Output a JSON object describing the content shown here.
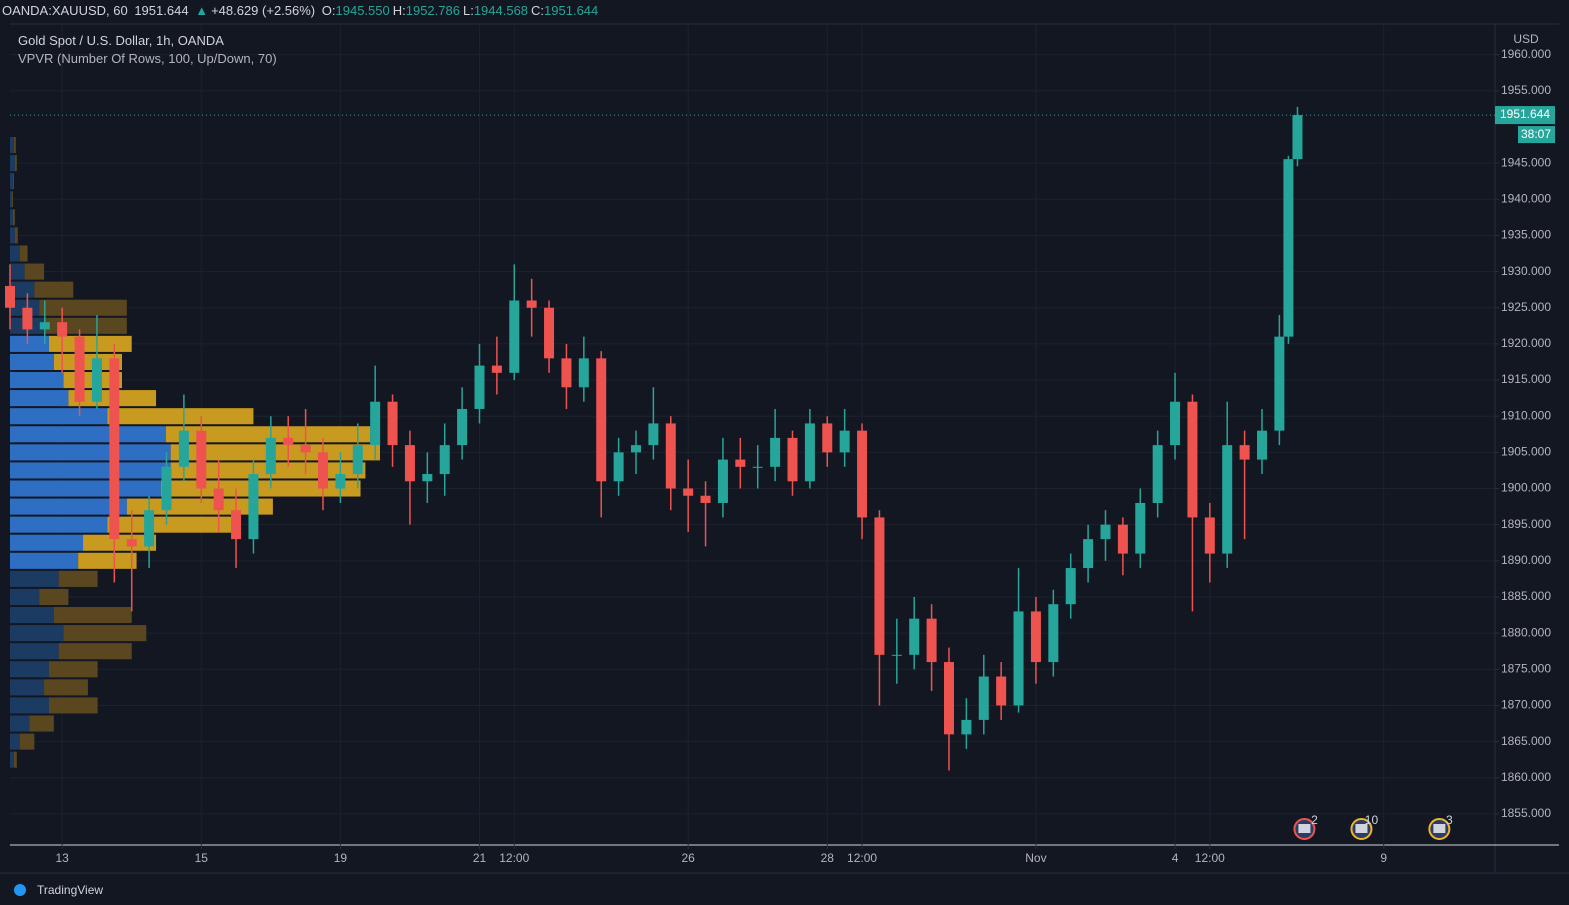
{
  "chart_data": {
    "type": "candlestick",
    "header": {
      "symbol": "OANDA:XAUUSD, 60",
      "price": "1951.644",
      "change": "+48.629 (+2.56%)",
      "fields": [
        {
          "key": "O:",
          "value": "1945.550"
        },
        {
          "key": "H:",
          "value": "1952.786"
        },
        {
          "key": "L:",
          "value": "1944.568"
        },
        {
          "key": "C:",
          "value": "1951.644"
        }
      ]
    },
    "title": "Gold Spot / U.S. Dollar, 1h, OANDA",
    "currency": "USD",
    "countdown": "38:07",
    "brand": "TradingView",
    "up_color": "#26a69a",
    "down_color": "#ef5350",
    "grid": true,
    "xlim": [
      -0.75,
      20.6
    ],
    "xticks": [
      {
        "value": 0,
        "label": "13"
      },
      {
        "value": 2,
        "label": "15"
      },
      {
        "value": 4,
        "label": "19"
      },
      {
        "value": 6,
        "label": "21"
      },
      {
        "value": 6.5,
        "label": "12:00"
      },
      {
        "value": 9,
        "label": "26"
      },
      {
        "value": 11,
        "label": "28"
      },
      {
        "value": 11.5,
        "label": "12:00"
      },
      {
        "value": 14,
        "label": "Nov"
      },
      {
        "value": 16,
        "label": "4"
      },
      {
        "value": 16.5,
        "label": "12:00"
      },
      {
        "value": 19,
        "label": "9"
      }
    ],
    "ylim": [
      1850.7,
      1964.1
    ],
    "yticks": [
      {
        "value": 1855,
        "label": "1855.000"
      },
      {
        "value": 1860,
        "label": "1860.000"
      },
      {
        "value": 1865,
        "label": "1865.000"
      },
      {
        "value": 1870,
        "label": "1870.000"
      },
      {
        "value": 1875,
        "label": "1875.000"
      },
      {
        "value": 1880,
        "label": "1880.000"
      },
      {
        "value": 1885,
        "label": "1885.000"
      },
      {
        "value": 1890,
        "label": "1890.000"
      },
      {
        "value": 1895,
        "label": "1895.000"
      },
      {
        "value": 1900,
        "label": "1900.000"
      },
      {
        "value": 1905,
        "label": "1905.000"
      },
      {
        "value": 1910,
        "label": "1910.000"
      },
      {
        "value": 1915,
        "label": "1915.000"
      },
      {
        "value": 1920,
        "label": "1920.000"
      },
      {
        "value": 1925,
        "label": "1925.000"
      },
      {
        "value": 1930,
        "label": "1930.000"
      },
      {
        "value": 1935,
        "label": "1935.000"
      },
      {
        "value": 1940,
        "label": "1940.000"
      },
      {
        "value": 1945,
        "label": "1945.000"
      },
      {
        "value": 1955,
        "label": "1955.000"
      },
      {
        "value": 1960,
        "label": "1960.000"
      }
    ],
    "x": [
      -0.75,
      -0.5,
      -0.25,
      0,
      0.25,
      0.5,
      0.75,
      1,
      1.25,
      1.5,
      1.75,
      2,
      2.25,
      2.5,
      2.75,
      3,
      3.25,
      3.5,
      3.75,
      4,
      4.25,
      4.5,
      4.75,
      5,
      5.25,
      5.5,
      5.75,
      6,
      6.25,
      6.5,
      6.75,
      7,
      7.25,
      7.5,
      7.75,
      8,
      8.25,
      8.5,
      8.75,
      9,
      9.25,
      9.5,
      9.75,
      10,
      10.25,
      10.5,
      10.75,
      11,
      11.25,
      11.5,
      11.75,
      12,
      12.25,
      12.5,
      12.75,
      13,
      13.25,
      13.5,
      13.75,
      14,
      14.25,
      14.5,
      14.75,
      15,
      15.25,
      15.5,
      15.75,
      16,
      16.25,
      16.5,
      16.75,
      17,
      17.25,
      17.5,
      17.63,
      17.76
    ],
    "ohlc": [
      [
        1928,
        1931,
        1922,
        1925
      ],
      [
        1925,
        1927,
        1920,
        1922
      ],
      [
        1922,
        1926,
        1920,
        1923
      ],
      [
        1923,
        1925,
        1916,
        1921
      ],
      [
        1921,
        1922,
        1910,
        1912
      ],
      [
        1912,
        1924,
        1911,
        1918
      ],
      [
        1918,
        1920,
        1887,
        1893
      ],
      [
        1893,
        1897,
        1883,
        1892
      ],
      [
        1892,
        1899,
        1889,
        1897
      ],
      [
        1897,
        1905,
        1895,
        1903
      ],
      [
        1903,
        1913,
        1901,
        1908
      ],
      [
        1908,
        1910,
        1898,
        1900
      ],
      [
        1900,
        1904,
        1894,
        1897
      ],
      [
        1897,
        1900,
        1889,
        1893
      ],
      [
        1893,
        1904,
        1891,
        1902
      ],
      [
        1902,
        1910,
        1900,
        1907
      ],
      [
        1907,
        1910,
        1903,
        1906
      ],
      [
        1906,
        1911,
        1902,
        1905
      ],
      [
        1905,
        1907,
        1897,
        1900
      ],
      [
        1900,
        1905,
        1898,
        1902
      ],
      [
        1902,
        1909,
        1900,
        1906
      ],
      [
        1906,
        1917,
        1904,
        1912
      ],
      [
        1912,
        1913,
        1903,
        1906
      ],
      [
        1906,
        1908,
        1895,
        1901
      ],
      [
        1901,
        1905,
        1898,
        1902
      ],
      [
        1902,
        1909,
        1899,
        1906
      ],
      [
        1906,
        1914,
        1904,
        1911
      ],
      [
        1911,
        1920,
        1909,
        1917
      ],
      [
        1917,
        1921,
        1913,
        1916
      ],
      [
        1916,
        1931,
        1915,
        1926
      ],
      [
        1926,
        1929,
        1921,
        1925
      ],
      [
        1925,
        1926,
        1916,
        1918
      ],
      [
        1918,
        1920,
        1911,
        1914
      ],
      [
        1914,
        1921,
        1912,
        1918
      ],
      [
        1918,
        1919,
        1896,
        1901
      ],
      [
        1901,
        1907,
        1899,
        1905
      ],
      [
        1905,
        1908,
        1902,
        1906
      ],
      [
        1906,
        1914,
        1904,
        1909
      ],
      [
        1909,
        1910,
        1897,
        1900
      ],
      [
        1900,
        1904,
        1894,
        1899
      ],
      [
        1899,
        1901,
        1892,
        1898
      ],
      [
        1898,
        1907,
        1896,
        1904
      ],
      [
        1904,
        1907,
        1900,
        1903
      ],
      [
        1903,
        1906,
        1900,
        1903
      ],
      [
        1903,
        1911,
        1901,
        1907
      ],
      [
        1907,
        1908,
        1899,
        1901
      ],
      [
        1901,
        1911,
        1900,
        1909
      ],
      [
        1909,
        1910,
        1903,
        1905
      ],
      [
        1905,
        1911,
        1903,
        1908
      ],
      [
        1908,
        1909,
        1893,
        1896
      ],
      [
        1896,
        1897,
        1870,
        1877
      ],
      [
        1877,
        1882,
        1873,
        1877
      ],
      [
        1877,
        1885,
        1875,
        1882
      ],
      [
        1882,
        1884,
        1872,
        1876
      ],
      [
        1876,
        1878,
        1861,
        1866
      ],
      [
        1866,
        1871,
        1864,
        1868
      ],
      [
        1868,
        1877,
        1866,
        1874
      ],
      [
        1874,
        1876,
        1868,
        1870
      ],
      [
        1870,
        1889,
        1869,
        1883
      ],
      [
        1883,
        1885,
        1873,
        1876
      ],
      [
        1876,
        1886,
        1874,
        1884
      ],
      [
        1884,
        1891,
        1882,
        1889
      ],
      [
        1889,
        1895,
        1887,
        1893
      ],
      [
        1893,
        1897,
        1890,
        1895
      ],
      [
        1895,
        1896,
        1888,
        1891
      ],
      [
        1891,
        1900,
        1889,
        1898
      ],
      [
        1898,
        1908,
        1896,
        1906
      ],
      [
        1906,
        1916,
        1904,
        1912
      ],
      [
        1912,
        1913,
        1883,
        1896
      ],
      [
        1896,
        1898,
        1887,
        1891
      ],
      [
        1891,
        1912,
        1889,
        1906
      ],
      [
        1906,
        1908,
        1893,
        1904
      ],
      [
        1904,
        1911,
        1902,
        1908
      ],
      [
        1908,
        1924,
        1906,
        1921
      ],
      [
        1921,
        1946,
        1920,
        1945.55
      ],
      [
        1945.55,
        1952.786,
        1944.568,
        1951.644
      ]
    ],
    "vpvr": {
      "name": "VPVR (Number Of Rows, 100, Up/Down, 70)",
      "levels": [
        1947.5,
        1945,
        1942.5,
        1940,
        1937.5,
        1935,
        1932.5,
        1930,
        1927.5,
        1925,
        1922.5,
        1920,
        1917.5,
        1915,
        1912.5,
        1910,
        1907.5,
        1905,
        1902.5,
        1900,
        1897.5,
        1895,
        1892.5,
        1890,
        1887.5,
        1885,
        1882.5,
        1880,
        1877.5,
        1875,
        1872.5,
        1870,
        1867.5,
        1865,
        1862.5
      ],
      "up": [
        4,
        5,
        3,
        2,
        3,
        5,
        10,
        15,
        25,
        30,
        35,
        40,
        45,
        55,
        60,
        100,
        160,
        165,
        165,
        155,
        120,
        100,
        75,
        70,
        50,
        30,
        45,
        55,
        50,
        40,
        35,
        40,
        20,
        10,
        4
      ],
      "down": [
        2,
        2,
        1,
        1,
        2,
        3,
        8,
        20,
        40,
        90,
        85,
        85,
        70,
        60,
        90,
        150,
        210,
        215,
        200,
        205,
        150,
        130,
        75,
        60,
        40,
        30,
        80,
        85,
        75,
        50,
        45,
        50,
        25,
        15,
        3
      ],
      "value_area": [
        1889,
        1921
      ],
      "colors": {
        "up": "#2e6fc4",
        "down": "#c99a20",
        "up_dim": "#1b3b63",
        "down_dim": "#5a4720"
      }
    },
    "events": [
      {
        "x": 17.86,
        "label": "2"
      },
      {
        "x": 18.68,
        "label": "10"
      },
      {
        "x": 19.8,
        "label": "3"
      }
    ]
  }
}
